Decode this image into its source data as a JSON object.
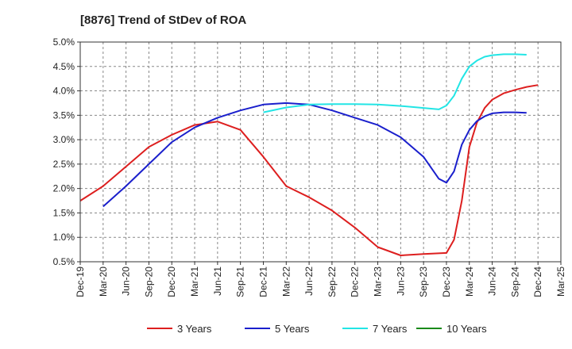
{
  "chart_data": {
    "type": "line",
    "title": "[8876]  Trend of StDev of ROA",
    "xlabel": "",
    "ylabel": "",
    "x_ticks": [
      "Dec-19",
      "Mar-20",
      "Jun-20",
      "Sep-20",
      "Dec-20",
      "Mar-21",
      "Jun-21",
      "Sep-21",
      "Dec-21",
      "Mar-22",
      "Jun-22",
      "Sep-22",
      "Dec-22",
      "Mar-23",
      "Jun-23",
      "Sep-23",
      "Dec-23",
      "Mar-24",
      "Jun-24",
      "Sep-24",
      "Dec-24",
      "Mar-25"
    ],
    "y_ticks": [
      "0.5%",
      "1.0%",
      "1.5%",
      "2.0%",
      "2.5%",
      "3.0%",
      "3.5%",
      "4.0%",
      "4.5%",
      "5.0%"
    ],
    "ylim": [
      0.5,
      5.0
    ],
    "grid": true,
    "legend_position": "bottom",
    "series": [
      {
        "name": "3 Years",
        "color": "#dd1f1f",
        "points": [
          [
            0,
            1.75
          ],
          [
            1,
            2.05
          ],
          [
            2,
            2.45
          ],
          [
            3,
            2.85
          ],
          [
            4,
            3.1
          ],
          [
            5,
            3.3
          ],
          [
            6,
            3.37
          ],
          [
            7,
            3.2
          ],
          [
            8,
            2.65
          ],
          [
            9,
            2.05
          ],
          [
            10,
            1.82
          ],
          [
            11,
            1.55
          ],
          [
            12,
            1.2
          ],
          [
            13,
            0.8
          ],
          [
            14,
            0.63
          ],
          [
            15,
            0.66
          ],
          [
            16,
            0.68
          ],
          [
            16.33,
            0.95
          ],
          [
            16.67,
            1.75
          ],
          [
            17,
            2.85
          ],
          [
            17.33,
            3.35
          ],
          [
            17.67,
            3.65
          ],
          [
            18,
            3.82
          ],
          [
            18.5,
            3.95
          ],
          [
            19,
            4.02
          ],
          [
            19.5,
            4.08
          ],
          [
            20,
            4.12
          ]
        ]
      },
      {
        "name": "5 Years",
        "color": "#1a1fcc",
        "points": [
          [
            1,
            1.63
          ],
          [
            2,
            2.05
          ],
          [
            3,
            2.5
          ],
          [
            4,
            2.95
          ],
          [
            5,
            3.25
          ],
          [
            6,
            3.45
          ],
          [
            7,
            3.6
          ],
          [
            8,
            3.72
          ],
          [
            9,
            3.75
          ],
          [
            10,
            3.72
          ],
          [
            11,
            3.6
          ],
          [
            12,
            3.45
          ],
          [
            13,
            3.3
          ],
          [
            14,
            3.05
          ],
          [
            15,
            2.65
          ],
          [
            15.67,
            2.2
          ],
          [
            16,
            2.12
          ],
          [
            16.33,
            2.35
          ],
          [
            16.67,
            2.9
          ],
          [
            17,
            3.2
          ],
          [
            17.33,
            3.38
          ],
          [
            17.67,
            3.48
          ],
          [
            18,
            3.54
          ],
          [
            18.5,
            3.56
          ],
          [
            19,
            3.56
          ],
          [
            19.5,
            3.55
          ]
        ]
      },
      {
        "name": "7 Years",
        "color": "#22e5e5",
        "points": [
          [
            8,
            3.56
          ],
          [
            9,
            3.66
          ],
          [
            10,
            3.72
          ],
          [
            11,
            3.73
          ],
          [
            12,
            3.73
          ],
          [
            13,
            3.72
          ],
          [
            14,
            3.69
          ],
          [
            15,
            3.65
          ],
          [
            15.67,
            3.62
          ],
          [
            16,
            3.7
          ],
          [
            16.33,
            3.9
          ],
          [
            16.67,
            4.25
          ],
          [
            17,
            4.5
          ],
          [
            17.33,
            4.62
          ],
          [
            17.67,
            4.7
          ],
          [
            18,
            4.73
          ],
          [
            18.5,
            4.75
          ],
          [
            19,
            4.75
          ],
          [
            19.5,
            4.74
          ]
        ]
      },
      {
        "name": "10 Years",
        "color": "#1a8a1a",
        "points": []
      }
    ]
  }
}
